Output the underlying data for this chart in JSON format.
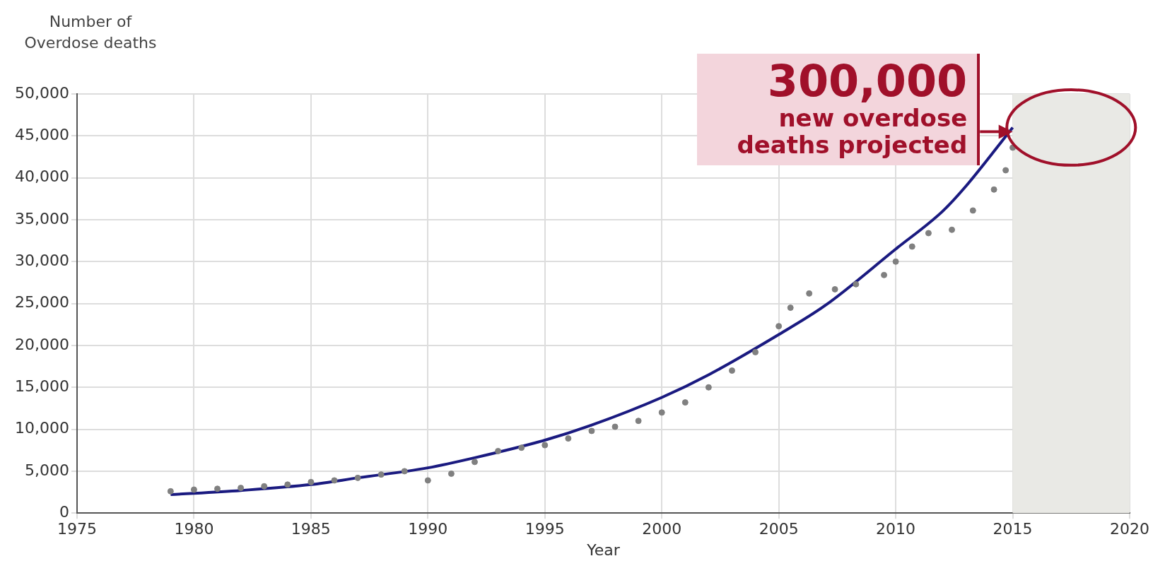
{
  "chart_data": {
    "type": "scatter",
    "xlabel": "Year",
    "ylabel": "Number of Overdose deaths",
    "xlim": [
      1975,
      2020
    ],
    "xticks": [
      1975,
      1980,
      1985,
      1990,
      1995,
      2000,
      2005,
      2010,
      2015,
      2020
    ],
    "ylim": [
      0,
      50000
    ],
    "yticks": [
      {
        "value": 0,
        "label": "0"
      },
      {
        "value": 5000,
        "label": "5,000"
      },
      {
        "value": 10000,
        "label": "10,000"
      },
      {
        "value": 15000,
        "label": "15,000"
      },
      {
        "value": 20000,
        "label": "20,000"
      },
      {
        "value": 25000,
        "label": "25,000"
      },
      {
        "value": 30000,
        "label": "30,000"
      },
      {
        "value": 35000,
        "label": "35,000"
      },
      {
        "value": 40000,
        "label": "40,000"
      },
      {
        "value": 45000,
        "label": "45,000"
      },
      {
        "value": 50000,
        "label": "50,000"
      }
    ],
    "grid": true,
    "legend": false,
    "series": [
      {
        "color": "#808080",
        "marker": "circle",
        "x": [
          1979,
          1980,
          1981,
          1982,
          1983,
          1984,
          1985,
          1986,
          1987,
          1988,
          1989,
          1990,
          1991,
          1992,
          1993,
          1994,
          1995,
          1996,
          1997,
          1998,
          1999,
          2000,
          2001,
          2002,
          2003,
          2004,
          2005,
          2005.5,
          2006.3,
          2007.4,
          2008.3,
          2009.5,
          2010,
          2010.7,
          2011.4,
          2012.4,
          2013.3,
          2014.2,
          2014.7,
          2015
        ],
        "values": [
          2600,
          2800,
          2900,
          3000,
          3200,
          3400,
          3700,
          3900,
          4200,
          4600,
          5000,
          3900,
          4700,
          6100,
          7400,
          7800,
          8100,
          8900,
          9800,
          10300,
          11000,
          12000,
          13200,
          15000,
          17000,
          19200,
          22300,
          24500,
          26200,
          26700,
          27300,
          28400,
          30000,
          31800,
          33400,
          33800,
          36100,
          38600,
          40900,
          43600
        ]
      },
      {
        "type": "line",
        "color": "#1a1a80",
        "marker": "none",
        "x": [
          1979,
          1982,
          1985,
          1987,
          1990,
          1992,
          1995,
          1997,
          2000,
          2002,
          2005,
          2007,
          2010,
          2012,
          2013,
          2015
        ],
        "values": [
          2200,
          2700,
          3400,
          4200,
          5400,
          6600,
          8700,
          10500,
          13800,
          16500,
          21300,
          24800,
          31500,
          36000,
          39000,
          46000
        ]
      }
    ],
    "bands": [
      {
        "axis": "x",
        "from": 2015,
        "to": 2020,
        "color": "#e9e9e5"
      }
    ],
    "annotations": [
      "300,000 new overdose deaths projected"
    ]
  }
}
